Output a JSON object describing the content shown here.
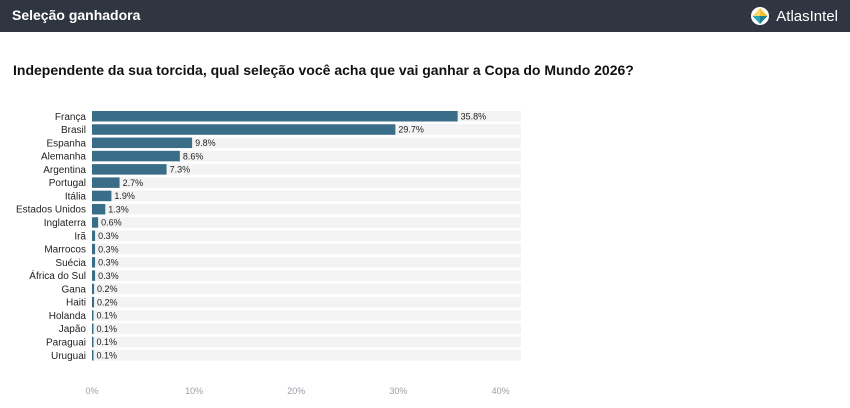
{
  "header": {
    "title": "Seleção ganhadora",
    "brand": "AtlasIntel"
  },
  "question": "Independente da sua torcida, qual seleção você acha que vai ganhar a Copa do Mundo 2026?",
  "colors": {
    "header_bg": "#2f3641",
    "bar": "#3a6e88",
    "track": "#f3f3f3",
    "logo_yellow": "#f2c230",
    "logo_teal": "#27a7b5"
  },
  "chart_data": {
    "type": "bar",
    "orientation": "horizontal",
    "categories": [
      "França",
      "Brasil",
      "Espanha",
      "Alemanha",
      "Argentina",
      "Portugal",
      "Itália",
      "Estados Unidos",
      "Inglaterra",
      "Irã",
      "Marrocos",
      "Suécia",
      "África do Sul",
      "Gana",
      "Haiti",
      "Holanda",
      "Japão",
      "Paraguai",
      "Uruguai"
    ],
    "values": [
      35.8,
      29.7,
      9.8,
      8.6,
      7.3,
      2.7,
      1.9,
      1.3,
      0.6,
      0.3,
      0.3,
      0.3,
      0.3,
      0.2,
      0.2,
      0.1,
      0.1,
      0.1,
      0.1
    ],
    "value_labels": [
      "35.8%",
      "29.7%",
      "9.8%",
      "8.6%",
      "7.3%",
      "2.7%",
      "1.9%",
      "1.3%",
      "0.6%",
      "0.3%",
      "0.3%",
      "0.3%",
      "0.3%",
      "0.2%",
      "0.2%",
      "0.1%",
      "0.1%",
      "0.1%",
      "0.1%"
    ],
    "xlim": [
      0,
      42
    ],
    "xticks": [
      0,
      10,
      20,
      30,
      40
    ],
    "xtick_labels": [
      "0%",
      "10%",
      "20%",
      "30%",
      "40%"
    ],
    "title": "",
    "xlabel": "",
    "ylabel": "",
    "grid": false,
    "legend": "none"
  }
}
